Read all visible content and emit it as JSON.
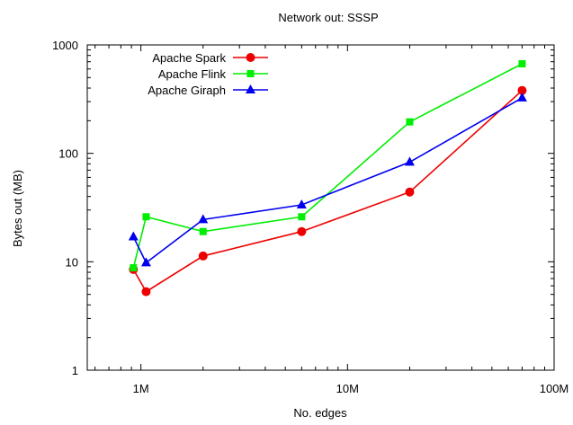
{
  "chart_data": {
    "type": "line",
    "title": "Network out: SSSP",
    "xlabel": "No. edges",
    "ylabel": "Bytes out (MB)",
    "x_scale": "log",
    "y_scale": "log",
    "xlim": [
      550000,
      100000000
    ],
    "ylim": [
      1,
      1000
    ],
    "x_ticks": [
      {
        "value": 1000000,
        "label": "1M"
      },
      {
        "value": 10000000,
        "label": "10M"
      },
      {
        "value": 100000000,
        "label": "100M"
      }
    ],
    "y_ticks": [
      {
        "value": 1,
        "label": "1"
      },
      {
        "value": 10,
        "label": "10"
      },
      {
        "value": 100,
        "label": "100"
      },
      {
        "value": 1000,
        "label": "1000"
      }
    ],
    "grid": false,
    "legend_position": "top-left",
    "series": [
      {
        "name": "Apache Spark",
        "color": "#ee0000",
        "marker": "circle",
        "x": [
          920000,
          1060000,
          2000000,
          6000000,
          20000000,
          70000000
        ],
        "y": [
          8.5,
          5.3,
          11.3,
          19,
          44,
          380
        ]
      },
      {
        "name": "Apache Flink",
        "color": "#00ee00",
        "marker": "square",
        "x": [
          920000,
          1060000,
          2000000,
          6000000,
          20000000,
          70000000
        ],
        "y": [
          8.8,
          26,
          19,
          26,
          195,
          670
        ]
      },
      {
        "name": "Apache Giraph",
        "color": "#0000ee",
        "marker": "triangle",
        "x": [
          920000,
          1060000,
          2000000,
          6000000,
          20000000,
          70000000
        ],
        "y": [
          17,
          9.8,
          24.5,
          33.5,
          83,
          325
        ]
      }
    ]
  }
}
